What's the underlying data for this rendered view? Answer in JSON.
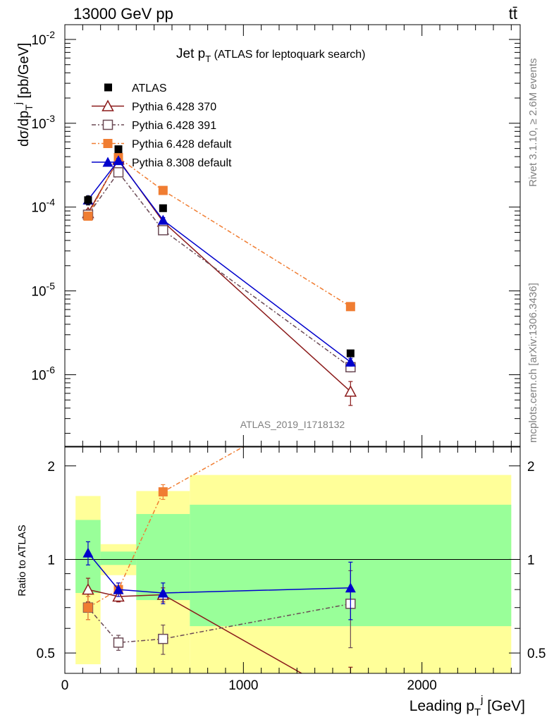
{
  "header": {
    "energy_label": "13000 GeV pp",
    "process_label": "tt̄"
  },
  "side_labels": {
    "rivet": "Rivet 3.1.10, ≥ 2.6M events",
    "mcplots": "mcplots.cern.ch [arXiv:1306.3436]"
  },
  "chart_data": [
    {
      "type": "line",
      "title": "Jet p_T (ATLAS for leptoquark search)",
      "ylabel": "dσ/dp_T^j [pb/GeV]",
      "yscale": "log",
      "ylim": [
        1.4e-07,
        0.015
      ],
      "xlim": [
        0,
        2550
      ],
      "y_ticks": [
        "10^-6",
        "10^-5",
        "10^-4",
        "10^-3",
        "10^-2"
      ],
      "analysis_label": "ATLAS_2019_I1718132",
      "legend_placement": "top-left",
      "data": {
        "name": "ATLAS",
        "x": [
          130,
          300,
          550,
          1600
        ],
        "y": [
          0.000121,
          0.00049,
          9.7e-05,
          1.8e-06
        ],
        "yerr": [
          1.5e-05,
          3e-05,
          6e-06,
          1.5e-07
        ]
      },
      "series": [
        {
          "name": "Pythia 6.428 370",
          "color": "#8b1a1a",
          "marker": "triangle-open",
          "dash": "",
          "x": [
            130,
            300,
            550,
            1600
          ],
          "y": [
            8.5e-05,
            0.00037,
            6.7e-05,
            6.3e-07
          ],
          "yerr": [
            9e-06,
            2e-05,
            5e-06,
            2e-07
          ]
        },
        {
          "name": "Pythia 6.428 391",
          "color": "#6b4a55",
          "marker": "square-open",
          "dash": "6,3,2,3",
          "x": [
            130,
            300,
            550,
            1600
          ],
          "y": [
            8.1e-05,
            0.00026,
            5.3e-05,
            1.23e-06
          ],
          "yerr": [
            8e-06,
            2e-05,
            4e-06,
            1.5e-07
          ]
        },
        {
          "name": "Pythia 6.428 default",
          "color": "#f07d32",
          "marker": "square-filled",
          "dash": "6,3,2,3",
          "x": [
            130,
            300,
            550,
            1600
          ],
          "y": [
            7.8e-05,
            0.00039,
            0.000158,
            6.5e-06
          ],
          "yerr": [
            8e-06,
            2e-05,
            8e-06,
            6e-07
          ]
        },
        {
          "name": "Pythia 8.308 default",
          "color": "#0000cc",
          "marker": "triangle-filled",
          "dash": "",
          "x": [
            130,
            300,
            550,
            1600
          ],
          "y": [
            0.000122,
            0.00036,
            7e-05,
            1.42e-06
          ],
          "yerr": [
            1.2e-05,
            2e-05,
            5e-06,
            1.5e-07
          ]
        }
      ]
    },
    {
      "type": "line",
      "ylabel": "Ratio to ATLAS",
      "xlabel": "Leading p_T^j [GeV]",
      "yscale": "log",
      "ylim": [
        0.43,
        2.3
      ],
      "xlim": [
        0,
        2550
      ],
      "x_ticks": [
        "0",
        "1000",
        "2000"
      ],
      "y_ticks": [
        "0.5",
        "1",
        "2"
      ],
      "reference_line": 1,
      "bands": [
        {
          "x0": 60,
          "x1": 200,
          "inner": [
            0.78,
            1.34
          ],
          "outer": [
            0.46,
            1.6
          ]
        },
        {
          "x0": 200,
          "x1": 400,
          "inner": [
            0.96,
            1.06
          ],
          "outer": [
            0.89,
            1.12
          ]
        },
        {
          "x0": 400,
          "x1": 700,
          "inner": [
            0.74,
            1.4
          ],
          "outer": [
            0.43,
            1.66
          ]
        },
        {
          "x0": 700,
          "x1": 2500,
          "inner": [
            0.61,
            1.5
          ],
          "outer": [
            0.43,
            1.87
          ]
        }
      ],
      "series": [
        {
          "name": "Pythia 6.428 370",
          "x": [
            130,
            300,
            550,
            1600
          ],
          "y": [
            0.8,
            0.76,
            0.77,
            0.35
          ],
          "yerr": [
            0.07,
            0.03,
            0.04,
            0.1
          ]
        },
        {
          "name": "Pythia 6.428 391",
          "x": [
            130,
            300,
            550,
            1600
          ],
          "y": [
            0.7,
            0.54,
            0.555,
            0.72
          ],
          "yerr": [
            0.06,
            0.03,
            0.06,
            0.2
          ]
        },
        {
          "name": "Pythia 6.428 default",
          "x": [
            130,
            300,
            550,
            1600
          ],
          "y": [
            0.7,
            0.8,
            1.65,
            3.6
          ],
          "yerr": [
            0.06,
            0.04,
            0.09,
            0.3
          ]
        },
        {
          "name": "Pythia 8.308 default",
          "x": [
            130,
            300,
            550,
            1600
          ],
          "y": [
            1.05,
            0.8,
            0.78,
            0.81
          ],
          "yerr": [
            0.09,
            0.04,
            0.06,
            0.17
          ]
        }
      ]
    }
  ]
}
